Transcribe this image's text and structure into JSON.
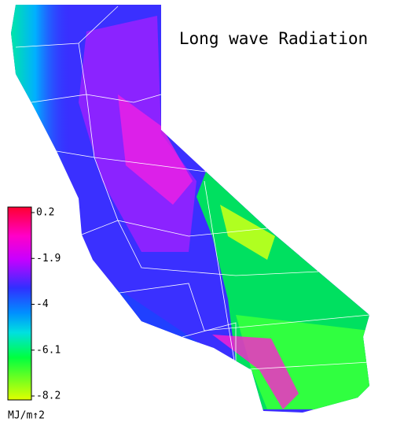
{
  "map": {
    "title": "Long wave Radiation",
    "colorbar": {
      "label": "MJ/m↑2",
      "lim": [
        -8.2,
        0.2
      ],
      "ticks": [
        0.2,
        -1.9,
        -4.0,
        -6.1,
        -8.2
      ]
    }
  }
}
